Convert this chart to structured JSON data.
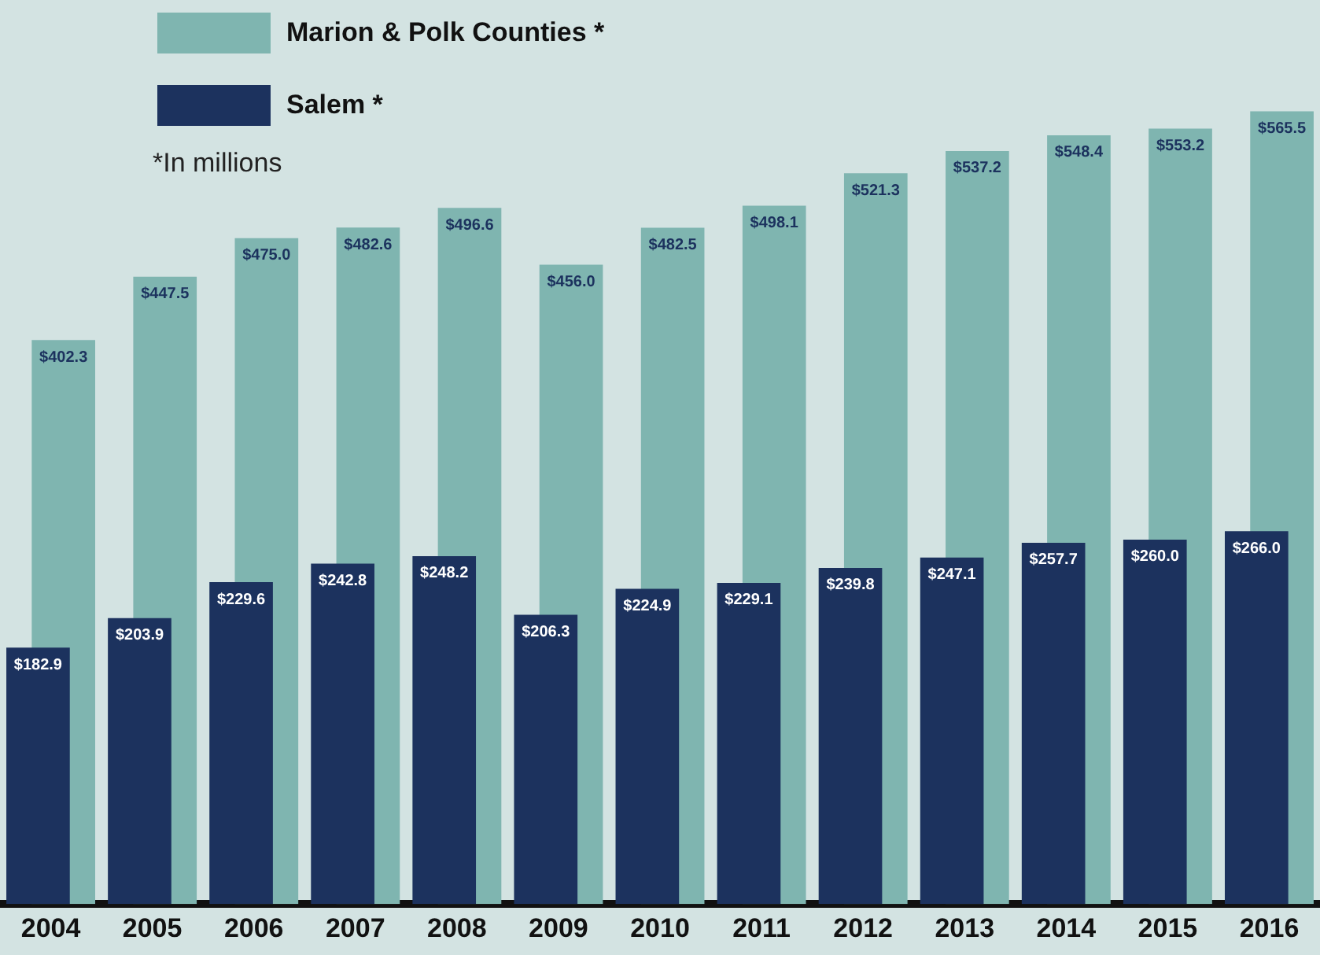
{
  "chart_data": {
    "type": "bar",
    "categories": [
      "2004",
      "2005",
      "2006",
      "2007",
      "2008",
      "2009",
      "2010",
      "2011",
      "2012",
      "2013",
      "2014",
      "2015",
      "2016"
    ],
    "series": [
      {
        "name": "Marion & Polk Counties *",
        "color": "#7fb5b0",
        "values": [
          402.3,
          447.5,
          475.0,
          482.6,
          496.6,
          456.0,
          482.5,
          498.1,
          521.3,
          537.2,
          548.4,
          553.2,
          565.5
        ],
        "value_labels": [
          "$402.3",
          "$447.5",
          "$475.0",
          "$482.6",
          "$496.6",
          "$456.0",
          "$482.5",
          "$498.1",
          "$521.3",
          "$537.2",
          "$548.4",
          "$553.2",
          "$565.5"
        ]
      },
      {
        "name": "Salem *",
        "color": "#1c325e",
        "values": [
          182.9,
          203.9,
          229.6,
          242.8,
          248.2,
          206.3,
          224.9,
          229.1,
          239.8,
          247.1,
          257.7,
          260.0,
          266.0
        ],
        "value_labels": [
          "$182.9",
          "$203.9",
          "$229.6",
          "$242.8",
          "$248.2",
          "$206.3",
          "$224.9",
          "$229.1",
          "$239.8",
          "$247.1",
          "$257.7",
          "$260.0",
          "$266.0"
        ]
      }
    ],
    "legend": "top left",
    "annotations": [
      "*In millions"
    ],
    "grid": false
  }
}
